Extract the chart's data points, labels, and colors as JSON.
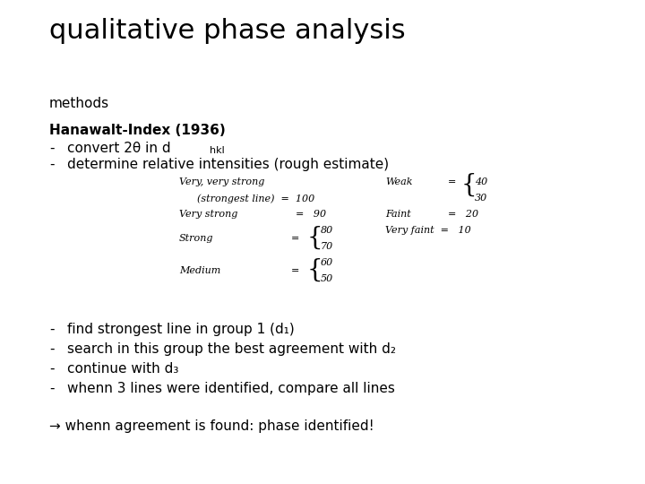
{
  "title": "qualitative phase analysis",
  "title_fontsize": 22,
  "bg_color": "#ffffff",
  "text_color": "#000000",
  "methods_label": "methods",
  "hanawalt_bold": "Hanawalt-Index (1936)",
  "bullets_bottom": [
    "find strongest line in group 1 (d₁)",
    "search in this group the best agreement with d₂",
    "continue with d₃",
    "whenn 3 lines were identified, compare all lines"
  ],
  "arrow_text": "→ whenn agreement is found: phase identified!"
}
